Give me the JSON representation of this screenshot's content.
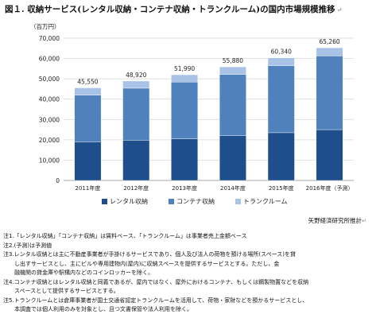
{
  "title": "図１. 収納サービス(レンタル収納・コンテナ収納・トランクルーム)の国内市場規模推移",
  "return_mark": "↵",
  "source": "矢野経済研究所推計",
  "notes": [
    "注1.「レンタル収納」「コンテナ収納」は賃料ベース、「トランクルーム」は事業者売上金額ベース",
    "注2.(予測)は予測値",
    "注3.レンタル収納とは主に不動産事業者が手掛けるサービスであり、個人及び法人の荷物を預ける場所(スペース)を貸",
    "　　し出すサービスとし、主にビルや専用建物内(屋内)に収納スペースを提供するサービスとする。ただし、金",
    "　　融機関の貸金庫や駅構内などのコインロッカーを除く。",
    "注4.コンテナ収納とはレンタル収納と同義であるが、屋内ではなく、屋外におけるコンテナ、もしくは鋼製物置などを収納",
    "　　スペースとして提供するサービスとする。",
    "注5.トランクルームとは倉庫事業者が国土交通省認定トランクルームを活用して、荷物・家財などを預かるサービスとし、",
    "　　本調査では個人利用のみを対象とし、且つ文書保管や法人利用を除く。"
  ],
  "chart_data": {
    "type": "bar",
    "stacked": true,
    "unit_label": "（百万円）",
    "categories": [
      "2011年度",
      "2012年度",
      "2013年度",
      "2014年度",
      "2015年度",
      "2016年度（予測）"
    ],
    "totals": [
      45550,
      48920,
      51990,
      55880,
      60340,
      65260
    ],
    "series": [
      {
        "name": "レンタル収納",
        "values": [
          19000,
          19800,
          20500,
          22000,
          23500,
          25000
        ],
        "color": "#1f4e8c"
      },
      {
        "name": "コンテナ収納",
        "values": [
          23000,
          25600,
          27900,
          30200,
          33000,
          36260
        ],
        "color": "#4f81bd"
      },
      {
        "name": "トランクルーム",
        "values": [
          3550,
          3520,
          3590,
          3680,
          3840,
          4000
        ],
        "color": "#a9c3e6"
      }
    ],
    "ylim": [
      0,
      70000
    ],
    "yticks": [
      "0",
      "10,000",
      "20,000",
      "30,000",
      "40,000",
      "50,000",
      "60,000",
      "70,000"
    ],
    "grid": true,
    "legend_position": "bottom"
  }
}
